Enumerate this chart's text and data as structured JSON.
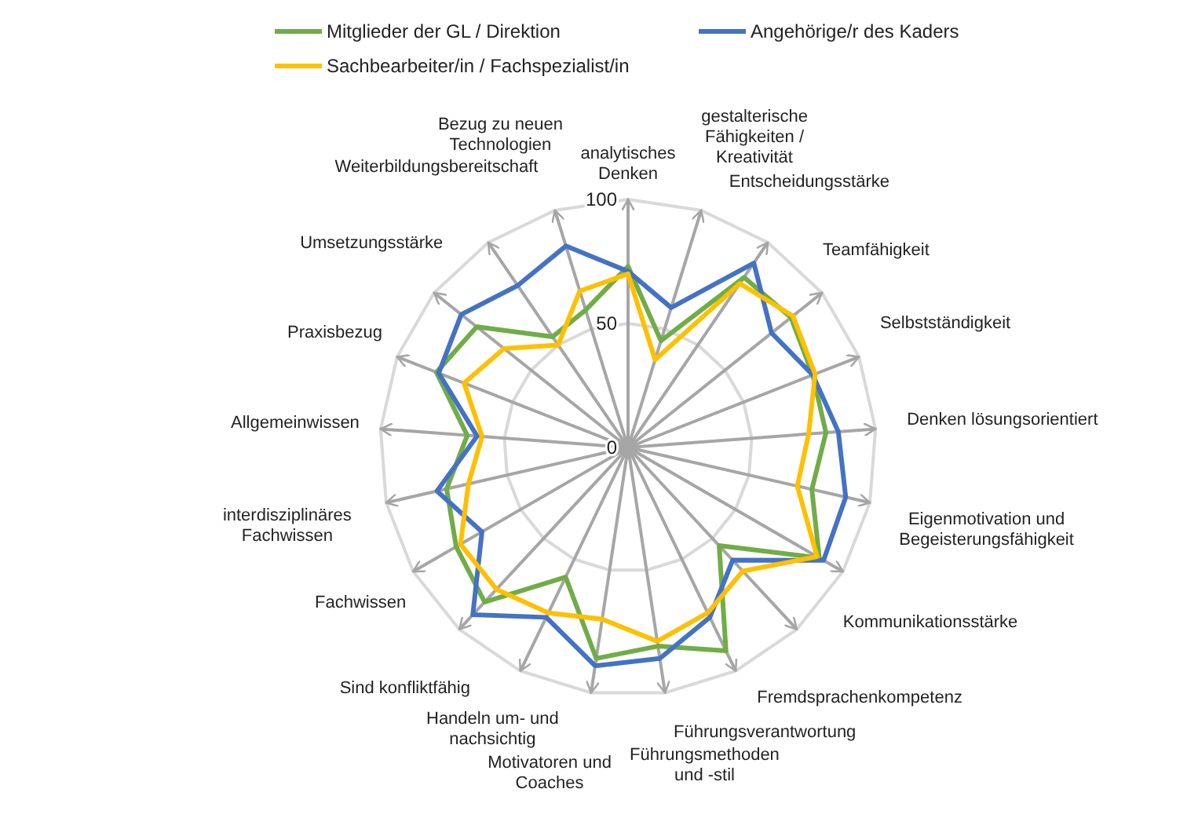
{
  "chart_data": {
    "type": "radar",
    "categories": [
      "analytisches Denken",
      "gestalterische Fähigkeiten / Kreativität",
      "Entscheidungsstärke",
      "Teamfähigkeit",
      "Selbstständigkeit",
      "Denken lösungsorientiert",
      "Eigenmotivation und Begeisterungsfähigkeit",
      "Kommunikationsstärke",
      "Fremdsprachenkompetenz",
      "Führungsverantwortung",
      "Führungsmethoden und -stil",
      "Motivatoren und Coaches",
      "Handeln um- und nachsichtig",
      "Sind konfliktfähig",
      "Fachwissen",
      "interdisziplinäres Fachwissen",
      "Allgemeinwissen",
      "Praxisbezug",
      "Umsetzungsstärke",
      "Weiterbildungsbereitschaft",
      "Bezug zu neuen Technologien"
    ],
    "series": [
      {
        "name": "Mitglieder der GL / Direktion",
        "color": "#70ad47",
        "values": [
          73,
          45,
          83,
          84,
          80,
          80,
          76,
          89,
          54,
          91,
          81,
          86,
          58,
          85,
          80,
          75,
          65,
          83,
          78,
          54,
          58
        ]
      },
      {
        "name": "Angehörige/r des Kaders",
        "color": "#4472c4",
        "values": [
          71,
          59,
          90,
          74,
          80,
          85,
          90,
          91,
          62,
          76,
          86,
          89,
          76,
          92,
          68,
          79,
          61,
          82,
          86,
          79,
          85
        ]
      },
      {
        "name": "Sachbearbeiter/in / Fachspezialist/in",
        "color": "#ffc000",
        "values": [
          70,
          37,
          80,
          85,
          81,
          73,
          70,
          88,
          68,
          74,
          79,
          70,
          74,
          78,
          78,
          66,
          59,
          71,
          64,
          50,
          66
        ]
      }
    ],
    "ylim": [
      0,
      100
    ],
    "yticks": [
      0,
      50,
      100
    ],
    "grid": true,
    "legend": "top",
    "marker": "none",
    "line_style": "solid"
  }
}
